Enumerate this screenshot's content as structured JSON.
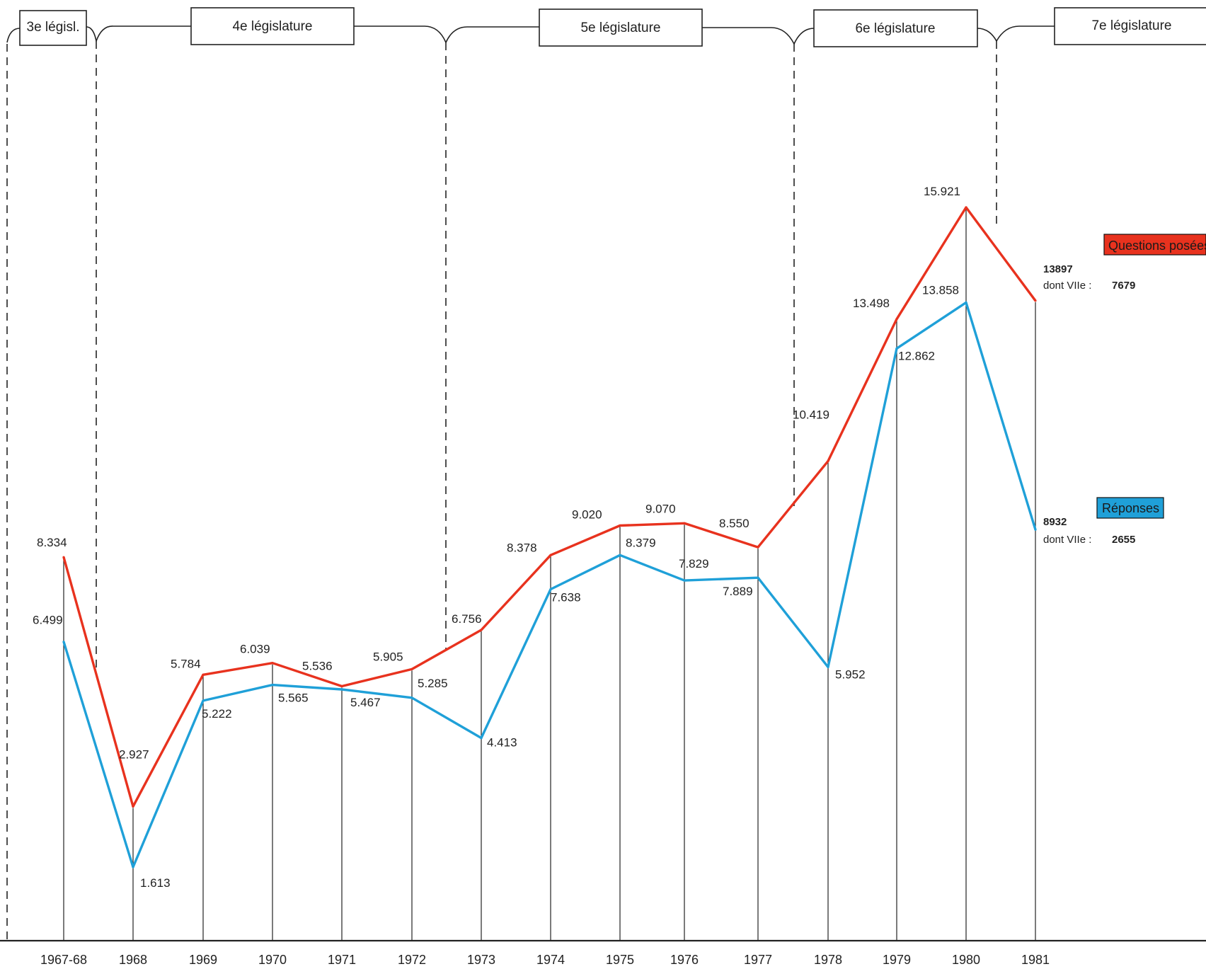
{
  "legislatures": [
    {
      "label": "3e législ."
    },
    {
      "label": "4e législature"
    },
    {
      "label": "5e législature"
    },
    {
      "label": "6e législature"
    },
    {
      "label": "7e législature"
    }
  ],
  "legend": {
    "questions": {
      "label": "Questions posées",
      "color": "#e8321e"
    },
    "reponses": {
      "label": "Réponses",
      "color": "#1fa0d8"
    }
  },
  "end_notes": {
    "questions": {
      "value": "13897",
      "prefix": "dont VIIe :",
      "sub_value": "7679"
    },
    "reponses": {
      "value": "8932",
      "prefix": "dont VIIe :",
      "sub_value": "2655"
    }
  },
  "chart_data": {
    "type": "line",
    "categories": [
      "1967-68",
      "1968",
      "1969",
      "1970",
      "1971",
      "1972",
      "1973",
      "1974",
      "1975",
      "1976",
      "1977",
      "1978",
      "1979",
      "1980",
      "1981"
    ],
    "series": [
      {
        "name": "Questions posées",
        "color": "#e8321e",
        "values": [
          8334,
          2927,
          5784,
          6039,
          5536,
          5905,
          6756,
          8378,
          9020,
          9070,
          8550,
          10419,
          13498,
          15921,
          13897
        ],
        "labels": [
          "8.334",
          "2.927",
          "5.784",
          "6.039",
          "5.536",
          "5.905",
          "6.756",
          "8.378",
          "9.020",
          "9.070",
          "8.550",
          "10.419",
          "13.498",
          "15.921",
          ""
        ]
      },
      {
        "name": "Réponses",
        "color": "#1fa0d8",
        "values": [
          6499,
          1613,
          5222,
          5565,
          5467,
          5285,
          4413,
          7638,
          8379,
          7829,
          7889,
          5952,
          12862,
          13858,
          8932
        ],
        "labels": [
          "6.499",
          "1.613",
          "5.222",
          "5.565",
          "5.467",
          "5.285",
          "4.413",
          "7.638",
          "8.379",
          "7.829",
          "7.889",
          "5.952",
          "12.862",
          "13.858",
          ""
        ]
      }
    ],
    "grid": false,
    "legend_position": "right"
  }
}
